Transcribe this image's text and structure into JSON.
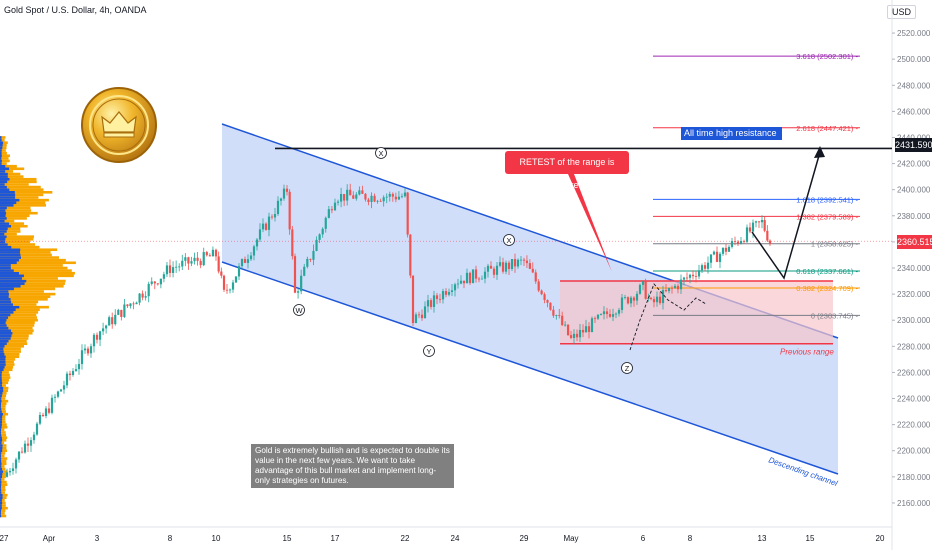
{
  "header": {
    "title": "Gold Spot / U.S. Dollar, 4h, OANDA",
    "currency": "USD"
  },
  "annotations": {
    "retest": "RETEST of the range is required",
    "ath_resistance": "All time high resistance",
    "ath_price": "2431.590",
    "current_price": "2360.515",
    "previous_range": "Previous range",
    "descending_channel": "Descending channel",
    "note": "Gold is extremely bullish and is expected to double its value in the next few years. We want to take advantage of this bull market and implement long-only strategies on futures.",
    "wave_labels": [
      "W",
      "X",
      "Y",
      "X",
      "Z"
    ]
  },
  "fib_levels": [
    {
      "label": "3.618 (2502.301)",
      "price": 2502.301,
      "color": "#9c27b0"
    },
    {
      "label": "2.618 (2447.421)",
      "price": 2447.421,
      "color": "#f23645"
    },
    {
      "label": "1.618 (2392.541)",
      "price": 2392.541,
      "color": "#2962ff"
    },
    {
      "label": "1.382 (2379.589)",
      "price": 2379.589,
      "color": "#f23645"
    },
    {
      "label": "1 (2358.625)",
      "price": 2358.625,
      "color": "#787b86"
    },
    {
      "label": "0.618 (2337.661)",
      "price": 2337.661,
      "color": "#089981"
    },
    {
      "label": "0.382 (2324.709)",
      "price": 2324.709,
      "color": "#ff9800"
    },
    {
      "label": "0 (2303.745)",
      "price": 2303.745,
      "color": "#787b86"
    }
  ],
  "colors": {
    "up": "#26a69a",
    "down": "#ef5350",
    "channel_fill": "#c9d8f8",
    "channel_line": "#1e56d8",
    "range_fill": "#f7c6cc",
    "volume_blue": "#1e56d8",
    "volume_orange": "#f7a600"
  },
  "chart_data": {
    "type": "candlestick",
    "title": "Gold Spot / U.S. Dollar, 4h, OANDA",
    "x_tick_labels": [
      "27",
      "Apr",
      "3",
      "8",
      "10",
      "15",
      "17",
      "22",
      "24",
      "29",
      "May",
      "6",
      "8",
      "13",
      "15",
      "20"
    ],
    "y_ticks": [
      2160,
      2180,
      2200,
      2220,
      2240,
      2260,
      2280,
      2300,
      2320,
      2340,
      2360,
      2380,
      2400,
      2420,
      2440,
      2460,
      2480,
      2500,
      2520
    ],
    "ylim": [
      2150,
      2530
    ],
    "price_path": [
      {
        "x": "27",
        "price": 2180
      },
      {
        "x": "3",
        "price": 2290
      },
      {
        "x": "8",
        "price": 2340
      },
      {
        "x": "10",
        "price": 2350
      },
      {
        "x": "10",
        "price": 2320
      },
      {
        "x": "15",
        "price": 2400
      },
      {
        "x": "15",
        "price": 2320
      },
      {
        "x": "17",
        "price": 2395
      },
      {
        "x": "22",
        "price": 2395
      },
      {
        "x": "22",
        "price": 2300
      },
      {
        "x": "24",
        "price": 2330
      },
      {
        "x": "29",
        "price": 2345
      },
      {
        "x": "May",
        "price": 2285
      },
      {
        "x": "6",
        "price": 2325
      },
      {
        "x": "8",
        "price": 2312
      },
      {
        "x": "13",
        "price": 2375
      },
      {
        "x": "13",
        "price": 2360
      }
    ],
    "ranges": {
      "previous_range": [
        2282,
        2330
      ],
      "all_time_high": 2431.59,
      "last_price": 2360.515
    }
  }
}
